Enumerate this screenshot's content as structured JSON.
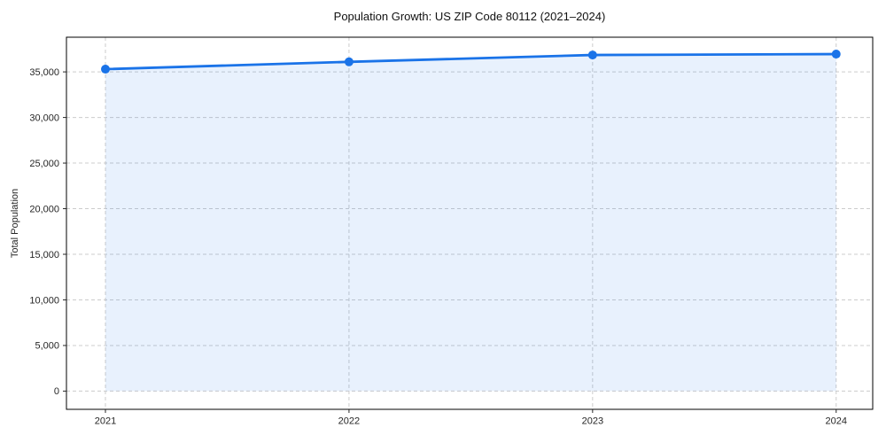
{
  "figure": {
    "title": "Population Growth: US ZIP Code 80112 (2021–2024)"
  },
  "chart_data": {
    "type": "area",
    "title": "Population Growth: US ZIP Code 80112 (2021–2024)",
    "xlabel": "",
    "ylabel": "Total Population",
    "x": [
      2021,
      2022,
      2023,
      2024
    ],
    "x_labels": [
      "2021",
      "2022",
      "2023",
      "2024"
    ],
    "series": [
      {
        "name": "Total Population",
        "values": [
          35300,
          36100,
          36850,
          36950
        ]
      }
    ],
    "yticks": [
      0,
      5000,
      10000,
      15000,
      20000,
      25000,
      30000,
      35000
    ],
    "ytick_labels": [
      "0",
      "5,000",
      "10,000",
      "15,000",
      "20,000",
      "25,000",
      "30,000",
      "35,000"
    ],
    "ylim": [
      -2000,
      38800
    ],
    "xlim": [
      2020.84,
      2024.15
    ],
    "grid": true,
    "grid_style": "dashed",
    "legend": false,
    "colors": {
      "line": "#1a73e8",
      "fill": "rgba(26,115,232,0.10)",
      "grid": "#cccccc",
      "spine": "#000000",
      "tick": "#262626",
      "background": "#ffffff"
    }
  }
}
